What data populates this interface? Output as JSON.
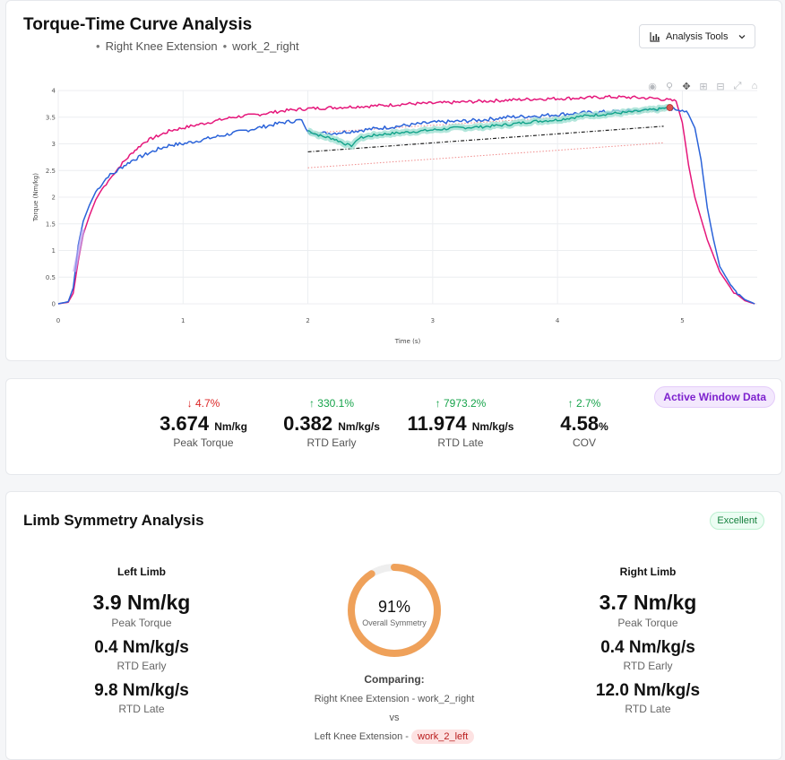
{
  "chart_card": {
    "title": "Torque-Time Curve Analysis",
    "subtitle_exercise": "Right Knee Extension",
    "subtitle_session": "work_2_right",
    "tools_button": "Analysis Tools",
    "modebar": [
      "camera-icon",
      "zoom-icon",
      "pan-icon",
      "zoom-in-icon",
      "zoom-out-icon",
      "autoscale-icon",
      "home-icon"
    ]
  },
  "chart_data": {
    "type": "line",
    "xlabel": "Time (s)",
    "ylabel": "Torque (Nm/kg)",
    "xlim": [
      0,
      5.6
    ],
    "ylim": [
      0,
      4
    ],
    "xticks": [
      "0",
      "1",
      "2",
      "3",
      "4",
      "5"
    ],
    "yticks": [
      "0",
      "0.5",
      "1",
      "1.5",
      "2",
      "2.5",
      "3",
      "3.5",
      "4"
    ],
    "grid": true,
    "colors": {
      "pink": "#e5177b",
      "blue": "#2b63d9",
      "teal": "#12a38a",
      "marker": "#d9534f"
    },
    "series": [
      {
        "color": "pink",
        "x": [
          0,
          0.08,
          0.12,
          0.16,
          0.2,
          0.25,
          0.3,
          0.35,
          0.4,
          0.45,
          0.5,
          0.6,
          0.7,
          0.8,
          0.9,
          1.0,
          1.2,
          1.4,
          1.6,
          1.8,
          2.0,
          2.2,
          2.4,
          2.6,
          2.8,
          3.0,
          3.2,
          3.4,
          3.6,
          3.8,
          4.0,
          4.2,
          4.4,
          4.6,
          4.8,
          4.95,
          5.0,
          5.05,
          5.1,
          5.15,
          5.2,
          5.3,
          5.4,
          5.5,
          5.58
        ],
        "y": [
          0,
          0.03,
          0.2,
          0.8,
          1.3,
          1.65,
          1.95,
          2.15,
          2.3,
          2.45,
          2.6,
          2.85,
          3.05,
          3.15,
          3.25,
          3.3,
          3.4,
          3.5,
          3.55,
          3.62,
          3.66,
          3.68,
          3.7,
          3.72,
          3.75,
          3.76,
          3.78,
          3.8,
          3.82,
          3.84,
          3.85,
          3.86,
          3.88,
          3.87,
          3.85,
          3.8,
          3.4,
          2.6,
          2.0,
          1.6,
          1.2,
          0.6,
          0.25,
          0.06,
          0
        ],
        "jitter": 0.03
      },
      {
        "color": "blue",
        "x": [
          0,
          0.08,
          0.12,
          0.16,
          0.2,
          0.25,
          0.3,
          0.35,
          0.4,
          0.45,
          0.5,
          0.6,
          0.7,
          0.8,
          0.9,
          1.0,
          1.2,
          1.4,
          1.6,
          1.8,
          1.95,
          2.0,
          2.2,
          2.4,
          2.6,
          2.8,
          3.0,
          3.2,
          3.4,
          3.6,
          3.8,
          4.0,
          4.2,
          4.4,
          4.6,
          4.8,
          4.9,
          5.0,
          5.05,
          5.1,
          5.15,
          5.2,
          5.25,
          5.3,
          5.4,
          5.5,
          5.58
        ],
        "y": [
          0,
          0.04,
          0.3,
          1.1,
          1.55,
          1.85,
          2.1,
          2.25,
          2.4,
          2.45,
          2.55,
          2.7,
          2.8,
          2.9,
          2.98,
          3.0,
          3.1,
          3.2,
          3.3,
          3.4,
          3.45,
          3.2,
          3.2,
          3.25,
          3.3,
          3.35,
          3.4,
          3.42,
          3.45,
          3.5,
          3.52,
          3.55,
          3.58,
          3.6,
          3.62,
          3.65,
          3.66,
          3.64,
          3.55,
          3.3,
          2.7,
          1.8,
          1.2,
          0.7,
          0.3,
          0.08,
          0
        ],
        "jitter": 0.035
      },
      {
        "color": "teal",
        "x": [
          2.0,
          2.1,
          2.2,
          2.3,
          2.35,
          2.4,
          2.5,
          2.6,
          2.8,
          3.0,
          3.2,
          3.4,
          3.6,
          3.8,
          4.0,
          4.2,
          4.4,
          4.6,
          4.8,
          4.9
        ],
        "y": [
          3.25,
          3.15,
          3.1,
          3.0,
          2.95,
          3.1,
          3.15,
          3.18,
          3.22,
          3.26,
          3.3,
          3.32,
          3.36,
          3.42,
          3.45,
          3.52,
          3.56,
          3.6,
          3.65,
          3.68
        ],
        "jitter": 0.025
      }
    ],
    "guide_lines": [
      {
        "style": "black-dashdot",
        "x": [
          2.0,
          4.85
        ],
        "y": [
          2.85,
          3.33
        ]
      },
      {
        "style": "red-dotted-upper",
        "x": [
          2.0,
          4.85
        ],
        "y": [
          3.2,
          3.62
        ]
      },
      {
        "style": "red-dotted-lower",
        "x": [
          2.0,
          4.85
        ],
        "y": [
          2.55,
          3.02
        ]
      }
    ],
    "marker": {
      "x": 4.9,
      "y": 3.68
    }
  },
  "metrics_card": {
    "badge": "Active Window Data",
    "items": [
      {
        "change": "↓ 4.7%",
        "dir": "down",
        "value": "3.674",
        "unit": "Nm/kg",
        "label": "Peak Torque"
      },
      {
        "change": "↑ 330.1%",
        "dir": "up",
        "value": "0.382",
        "unit": "Nm/kg/s",
        "label": "RTD Early"
      },
      {
        "change": "↑ 7973.2%",
        "dir": "up",
        "value": "11.974",
        "unit": "Nm/kg/s",
        "label": "RTD Late"
      },
      {
        "change": "↑ 2.7%",
        "dir": "up",
        "value": "4.58",
        "unit": "%",
        "label": "COV"
      }
    ]
  },
  "symmetry_card": {
    "title": "Limb Symmetry Analysis",
    "badge": "Excellent",
    "left": {
      "heading": "Left Limb",
      "peak": "3.9 Nm/kg",
      "peak_label": "Peak Torque",
      "rtd_early": "0.4 Nm/kg/s",
      "rtd_early_label": "RTD Early",
      "rtd_late": "9.8 Nm/kg/s",
      "rtd_late_label": "RTD Late"
    },
    "right": {
      "heading": "Right Limb",
      "peak": "3.7 Nm/kg",
      "peak_label": "Peak Torque",
      "rtd_early": "0.4 Nm/kg/s",
      "rtd_early_label": "RTD Early",
      "rtd_late": "12.0 Nm/kg/s",
      "rtd_late_label": "RTD Late"
    },
    "gauge": {
      "percent_text": "91%",
      "fraction": 0.91,
      "label": "Overall Symmetry",
      "color": "#efa15a",
      "track": "#eeeeee"
    },
    "comparing": {
      "heading": "Comparing:",
      "first": "Right Knee Extension - work_2_right",
      "vs": "vs",
      "second_exercise": "Left Knee Extension",
      "dash": "-",
      "second_session": "work_2_left"
    }
  }
}
